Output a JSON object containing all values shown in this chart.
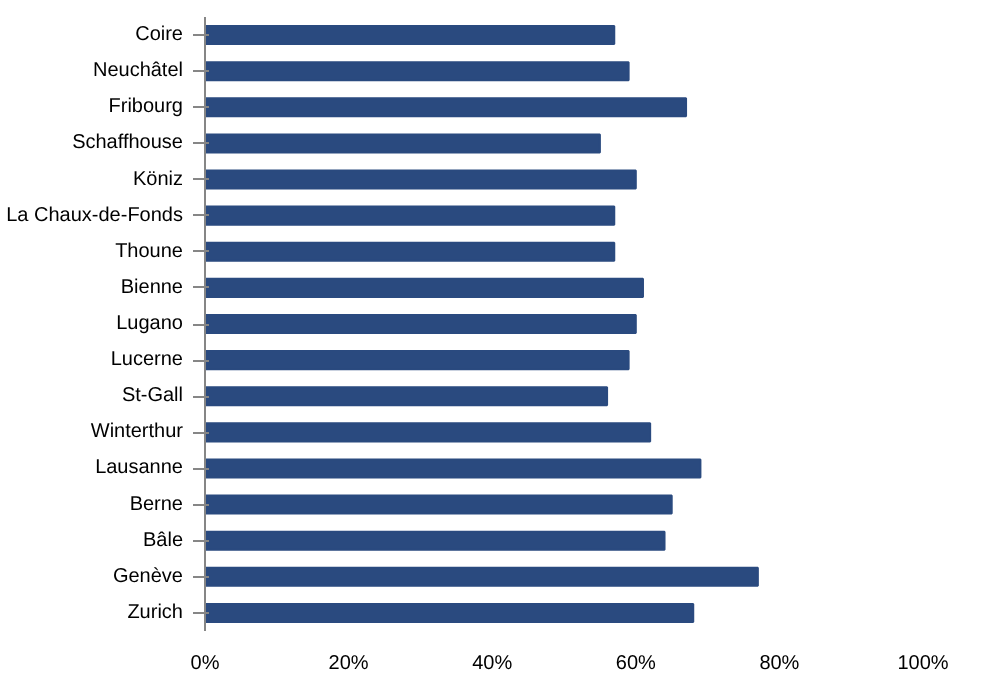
{
  "chart_data": {
    "type": "bar",
    "orientation": "horizontal",
    "categories": [
      "Coire",
      "Neuchâtel",
      "Fribourg",
      "Schaffhouse",
      "Köniz",
      "La Chaux-de-Fonds",
      "Thoune",
      "Bienne",
      "Lugano",
      "Lucerne",
      "St-Gall",
      "Winterthur",
      "Lausanne",
      "Berne",
      "Bâle",
      "Genève",
      "Zurich"
    ],
    "values": [
      57,
      59,
      67,
      55,
      60,
      57,
      57,
      61,
      60,
      59,
      56,
      62,
      69,
      65,
      64,
      77,
      68
    ],
    "color": "#2a4a7f",
    "xlim": [
      0,
      100
    ],
    "xticks": [
      {
        "value": 0,
        "label": "0%"
      },
      {
        "value": 20,
        "label": "20%"
      },
      {
        "value": 40,
        "label": "40%"
      },
      {
        "value": 60,
        "label": "60%"
      },
      {
        "value": 80,
        "label": "80%"
      },
      {
        "value": 100,
        "label": "100%"
      }
    ],
    "grid": false
  }
}
